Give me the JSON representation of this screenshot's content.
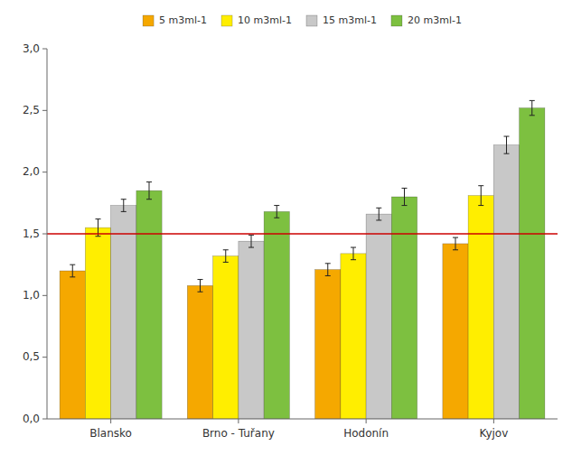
{
  "chart_data": {
    "type": "bar",
    "categories": [
      "Blansko",
      "Brno - Tuřany",
      "Hodonín",
      "Kyjov"
    ],
    "series": [
      {
        "name": "5 m3ml-1",
        "color": "#F5A800",
        "values": [
          1.2,
          1.08,
          1.21,
          1.42
        ],
        "errors": [
          0.05,
          0.05,
          0.05,
          0.05
        ]
      },
      {
        "name": "10 m3ml-1",
        "color": "#FFEE00",
        "values": [
          1.55,
          1.32,
          1.34,
          1.81
        ],
        "errors": [
          0.07,
          0.05,
          0.05,
          0.08
        ]
      },
      {
        "name": "15 m3ml-1",
        "color": "#C8C8C8",
        "values": [
          1.73,
          1.44,
          1.66,
          2.22
        ],
        "errors": [
          0.05,
          0.05,
          0.05,
          0.07
        ]
      },
      {
        "name": "20 m3ml-1",
        "color": "#7DC040",
        "values": [
          1.85,
          1.68,
          1.8,
          2.52
        ],
        "errors": [
          0.07,
          0.05,
          0.07,
          0.06
        ]
      }
    ],
    "hline": {
      "y": 1.5,
      "color": "#CC0000"
    },
    "ylim": [
      0.0,
      3.0
    ],
    "yticks": [
      {
        "value": 0.0,
        "label": "0,0"
      },
      {
        "value": 0.5,
        "label": "0,5"
      },
      {
        "value": 1.0,
        "label": "1,0"
      },
      {
        "value": 1.5,
        "label": "1,5"
      },
      {
        "value": 2.0,
        "label": "2,0"
      },
      {
        "value": 2.5,
        "label": "2,5"
      },
      {
        "value": 3.0,
        "label": "3,0"
      }
    ],
    "grid": false,
    "legend": "upper center"
  }
}
